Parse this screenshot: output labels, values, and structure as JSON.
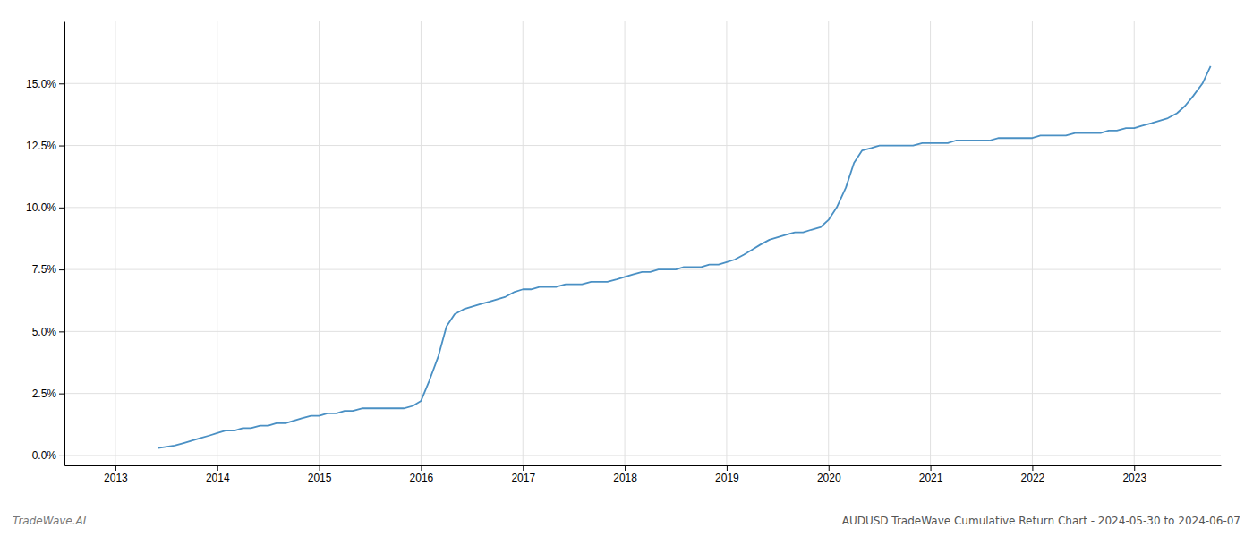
{
  "chart_data": {
    "type": "line",
    "title": "AUDUSD TradeWave Cumulative Return Chart - 2024-05-30 to 2024-06-07",
    "annotations": [
      "TradeWave.AI"
    ],
    "color": "#4a90c4",
    "grid": true,
    "xlim": [
      2012.5,
      2023.85
    ],
    "xticks": [
      2013,
      2014,
      2015,
      2016,
      2017,
      2018,
      2019,
      2020,
      2021,
      2022,
      2023
    ],
    "ylim": [
      -0.004,
      0.175
    ],
    "yticks": [
      {
        "value": 0.0,
        "label": "0.0%"
      },
      {
        "value": 0.025,
        "label": "2.5%"
      },
      {
        "value": 0.05,
        "label": "5.0%"
      },
      {
        "value": 0.075,
        "label": "7.5%"
      },
      {
        "value": 0.1,
        "label": "10.0%"
      },
      {
        "value": 0.125,
        "label": "12.5%"
      },
      {
        "value": 0.15,
        "label": "15.0%"
      }
    ],
    "x": [
      2013.42,
      2013.58,
      2013.67,
      2013.75,
      2013.83,
      2013.92,
      2014.0,
      2014.08,
      2014.17,
      2014.25,
      2014.33,
      2014.42,
      2014.5,
      2014.58,
      2014.67,
      2014.75,
      2014.83,
      2014.92,
      2015.0,
      2015.08,
      2015.17,
      2015.25,
      2015.33,
      2015.42,
      2015.5,
      2015.58,
      2015.67,
      2015.75,
      2015.83,
      2015.92,
      2016.0,
      2016.08,
      2016.17,
      2016.25,
      2016.33,
      2016.42,
      2016.5,
      2016.58,
      2016.67,
      2016.75,
      2016.83,
      2016.92,
      2017.0,
      2017.08,
      2017.17,
      2017.25,
      2017.33,
      2017.42,
      2017.5,
      2017.58,
      2017.67,
      2017.75,
      2017.83,
      2017.92,
      2018.0,
      2018.08,
      2018.17,
      2018.25,
      2018.33,
      2018.42,
      2018.5,
      2018.58,
      2018.67,
      2018.75,
      2018.83,
      2018.92,
      2019.0,
      2019.08,
      2019.17,
      2019.25,
      2019.33,
      2019.42,
      2019.5,
      2019.58,
      2019.67,
      2019.75,
      2019.83,
      2019.92,
      2020.0,
      2020.08,
      2020.17,
      2020.25,
      2020.33,
      2020.42,
      2020.5,
      2020.58,
      2020.67,
      2020.75,
      2020.83,
      2020.92,
      2021.0,
      2021.08,
      2021.17,
      2021.25,
      2021.33,
      2021.42,
      2021.5,
      2021.58,
      2021.67,
      2021.75,
      2021.83,
      2021.92,
      2022.0,
      2022.08,
      2022.17,
      2022.25,
      2022.33,
      2022.42,
      2022.5,
      2022.58,
      2022.67,
      2022.75,
      2022.83,
      2022.92,
      2023.0,
      2023.08,
      2023.17,
      2023.25,
      2023.33,
      2023.42,
      2023.5,
      2023.58,
      2023.67,
      2023.75
    ],
    "values": [
      0.003,
      0.004,
      0.005,
      0.006,
      0.007,
      0.008,
      0.009,
      0.01,
      0.01,
      0.011,
      0.011,
      0.012,
      0.012,
      0.013,
      0.013,
      0.014,
      0.015,
      0.016,
      0.016,
      0.017,
      0.017,
      0.018,
      0.018,
      0.019,
      0.019,
      0.019,
      0.019,
      0.019,
      0.019,
      0.02,
      0.022,
      0.03,
      0.04,
      0.052,
      0.057,
      0.059,
      0.06,
      0.061,
      0.062,
      0.063,
      0.064,
      0.066,
      0.067,
      0.067,
      0.068,
      0.068,
      0.068,
      0.069,
      0.069,
      0.069,
      0.07,
      0.07,
      0.07,
      0.071,
      0.072,
      0.073,
      0.074,
      0.074,
      0.075,
      0.075,
      0.075,
      0.076,
      0.076,
      0.076,
      0.077,
      0.077,
      0.078,
      0.079,
      0.081,
      0.083,
      0.085,
      0.087,
      0.088,
      0.089,
      0.09,
      0.09,
      0.091,
      0.092,
      0.095,
      0.1,
      0.108,
      0.118,
      0.123,
      0.124,
      0.125,
      0.125,
      0.125,
      0.125,
      0.125,
      0.126,
      0.126,
      0.126,
      0.126,
      0.127,
      0.127,
      0.127,
      0.127,
      0.127,
      0.128,
      0.128,
      0.128,
      0.128,
      0.128,
      0.129,
      0.129,
      0.129,
      0.129,
      0.13,
      0.13,
      0.13,
      0.13,
      0.131,
      0.131,
      0.132,
      0.132,
      0.133,
      0.134,
      0.135,
      0.136,
      0.138,
      0.141,
      0.145,
      0.15,
      0.157
    ]
  }
}
